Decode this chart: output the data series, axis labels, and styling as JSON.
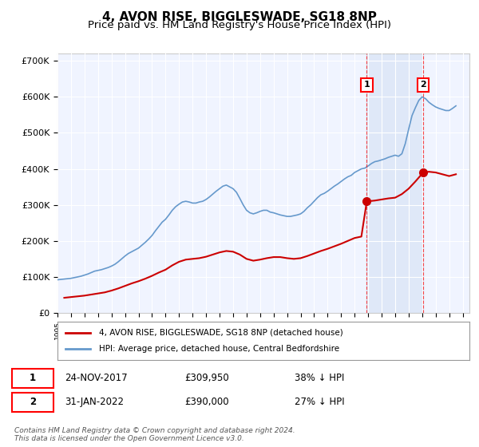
{
  "title": "4, AVON RISE, BIGGLESWADE, SG18 8NP",
  "subtitle": "Price paid vs. HM Land Registry's House Price Index (HPI)",
  "ylabel_ticks": [
    "£0",
    "£100K",
    "£200K",
    "£300K",
    "£400K",
    "£500K",
    "£600K",
    "£700K"
  ],
  "ytick_values": [
    0,
    100000,
    200000,
    300000,
    400000,
    500000,
    600000,
    700000
  ],
  "ylim": [
    0,
    720000
  ],
  "xlim_start": 1995,
  "xlim_end": 2025.5,
  "background_color": "#ffffff",
  "plot_bg_color": "#f0f4ff",
  "grid_color": "#ffffff",
  "hpi_color": "#6699cc",
  "price_color": "#cc0000",
  "legend_label_price": "4, AVON RISE, BIGGLESWADE, SG18 8NP (detached house)",
  "legend_label_hpi": "HPI: Average price, detached house, Central Bedfordshire",
  "sale1_date": 2017.9,
  "sale1_price": 309950,
  "sale2_date": 2022.08,
  "sale2_price": 390000,
  "sale1_label": "1",
  "sale2_label": "2",
  "table_data": [
    [
      "1",
      "24-NOV-2017",
      "£309,950",
      "38% ↓ HPI"
    ],
    [
      "2",
      "31-JAN-2022",
      "£390,000",
      "27% ↓ HPI"
    ]
  ],
  "footer": "Contains HM Land Registry data © Crown copyright and database right 2024.\nThis data is licensed under the Open Government Licence v3.0.",
  "title_fontsize": 11,
  "subtitle_fontsize": 9.5,
  "tick_fontsize": 8,
  "hpi_data_x": [
    1995.0,
    1995.25,
    1995.5,
    1995.75,
    1996.0,
    1996.25,
    1996.5,
    1996.75,
    1997.0,
    1997.25,
    1997.5,
    1997.75,
    1998.0,
    1998.25,
    1998.5,
    1998.75,
    1999.0,
    1999.25,
    1999.5,
    1999.75,
    2000.0,
    2000.25,
    2000.5,
    2000.75,
    2001.0,
    2001.25,
    2001.5,
    2001.75,
    2002.0,
    2002.25,
    2002.5,
    2002.75,
    2003.0,
    2003.25,
    2003.5,
    2003.75,
    2004.0,
    2004.25,
    2004.5,
    2004.75,
    2005.0,
    2005.25,
    2005.5,
    2005.75,
    2006.0,
    2006.25,
    2006.5,
    2006.75,
    2007.0,
    2007.25,
    2007.5,
    2007.75,
    2008.0,
    2008.25,
    2008.5,
    2008.75,
    2009.0,
    2009.25,
    2009.5,
    2009.75,
    2010.0,
    2010.25,
    2010.5,
    2010.75,
    2011.0,
    2011.25,
    2011.5,
    2011.75,
    2012.0,
    2012.25,
    2012.5,
    2012.75,
    2013.0,
    2013.25,
    2013.5,
    2013.75,
    2014.0,
    2014.25,
    2014.5,
    2014.75,
    2015.0,
    2015.25,
    2015.5,
    2015.75,
    2016.0,
    2016.25,
    2016.5,
    2016.75,
    2017.0,
    2017.25,
    2017.5,
    2017.75,
    2018.0,
    2018.25,
    2018.5,
    2018.75,
    2019.0,
    2019.25,
    2019.5,
    2019.75,
    2020.0,
    2020.25,
    2020.5,
    2020.75,
    2021.0,
    2021.25,
    2021.5,
    2021.75,
    2022.0,
    2022.25,
    2022.5,
    2022.75,
    2023.0,
    2023.25,
    2023.5,
    2023.75,
    2024.0,
    2024.25,
    2024.5
  ],
  "hpi_data_y": [
    92000,
    93000,
    94000,
    95000,
    96000,
    98000,
    100000,
    102000,
    105000,
    108000,
    112000,
    116000,
    118000,
    120000,
    123000,
    126000,
    130000,
    135000,
    142000,
    150000,
    158000,
    165000,
    170000,
    175000,
    180000,
    188000,
    196000,
    205000,
    215000,
    228000,
    240000,
    252000,
    260000,
    272000,
    285000,
    295000,
    302000,
    308000,
    310000,
    308000,
    305000,
    305000,
    308000,
    310000,
    315000,
    322000,
    330000,
    338000,
    345000,
    352000,
    355000,
    350000,
    345000,
    335000,
    318000,
    300000,
    285000,
    278000,
    275000,
    278000,
    282000,
    285000,
    285000,
    280000,
    278000,
    275000,
    272000,
    270000,
    268000,
    268000,
    270000,
    272000,
    275000,
    282000,
    292000,
    300000,
    310000,
    320000,
    328000,
    332000,
    338000,
    345000,
    352000,
    358000,
    365000,
    372000,
    378000,
    382000,
    390000,
    395000,
    400000,
    402000,
    408000,
    415000,
    420000,
    422000,
    425000,
    428000,
    432000,
    435000,
    438000,
    435000,
    442000,
    470000,
    510000,
    548000,
    570000,
    590000,
    600000,
    595000,
    585000,
    578000,
    572000,
    568000,
    565000,
    562000,
    562000,
    568000,
    575000
  ],
  "price_data_x": [
    1995.5,
    1996.0,
    1996.5,
    1997.0,
    1997.5,
    1998.0,
    1998.5,
    1999.0,
    1999.5,
    2000.0,
    2000.5,
    2001.0,
    2001.5,
    2002.0,
    2002.5,
    2003.0,
    2003.5,
    2004.0,
    2004.5,
    2005.0,
    2005.5,
    2006.0,
    2006.5,
    2007.0,
    2007.5,
    2008.0,
    2008.5,
    2009.0,
    2009.5,
    2010.0,
    2010.5,
    2011.0,
    2011.5,
    2012.0,
    2012.5,
    2013.0,
    2013.5,
    2014.0,
    2014.5,
    2015.0,
    2015.5,
    2016.0,
    2016.5,
    2017.0,
    2017.5,
    2017.9,
    2018.0,
    2018.5,
    2019.0,
    2019.5,
    2020.0,
    2020.5,
    2021.0,
    2021.5,
    2022.08,
    2022.5,
    2023.0,
    2023.5,
    2024.0,
    2024.5
  ],
  "price_data_y": [
    42000,
    44000,
    46000,
    48000,
    51000,
    54000,
    57000,
    62000,
    68000,
    75000,
    82000,
    88000,
    95000,
    103000,
    112000,
    120000,
    132000,
    142000,
    148000,
    150000,
    152000,
    156000,
    162000,
    168000,
    172000,
    170000,
    162000,
    150000,
    145000,
    148000,
    152000,
    155000,
    155000,
    152000,
    150000,
    152000,
    158000,
    165000,
    172000,
    178000,
    185000,
    192000,
    200000,
    208000,
    212000,
    309950,
    310000,
    312000,
    315000,
    318000,
    320000,
    330000,
    345000,
    365000,
    390000,
    392000,
    390000,
    385000,
    380000,
    385000
  ]
}
